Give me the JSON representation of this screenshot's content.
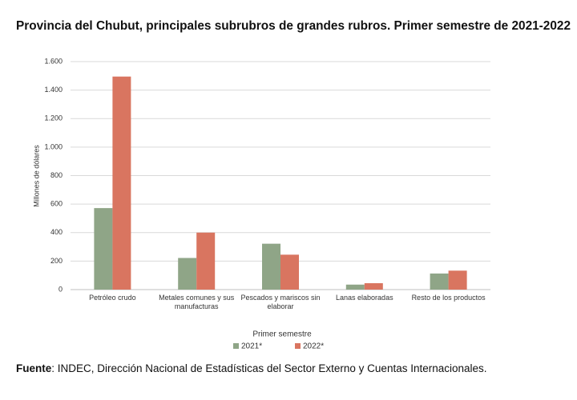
{
  "chart_data": {
    "type": "bar",
    "title": "Provincia del Chubut, principales subrubros de grandes rubros. Primer semestre de 2021-2022",
    "y_label": "Millones de dólares",
    "categories": [
      "Petróleo crudo",
      "Metales comunes y sus manufacturas",
      "Pescados y mariscos sin elaborar",
      "Lanas elaboradas",
      "Resto de los productos"
    ],
    "series": [
      {
        "name": "2021*",
        "color": "#8fa587",
        "values": [
          572,
          222,
          322,
          35,
          113
        ]
      },
      {
        "name": "2022*",
        "color": "#d97560",
        "values": [
          1495,
          400,
          245,
          45,
          133
        ]
      }
    ],
    "ylim": [
      0,
      1600
    ],
    "yticks": [
      0,
      200,
      400,
      600,
      800,
      {
        "value": 1000,
        "label": "1.000"
      },
      {
        "value": 1200,
        "label": "1.200"
      },
      {
        "value": 1400,
        "label": "1.400"
      },
      {
        "value": 1600,
        "label": "1.600"
      }
    ],
    "grid": true,
    "legend_title": "Primer semestre",
    "legend_position": "bottom",
    "source_label": "Fuente",
    "source_text": ": INDEC, Dirección Nacional de Estadísticas del Sector Externo y Cuentas Internacionales."
  }
}
